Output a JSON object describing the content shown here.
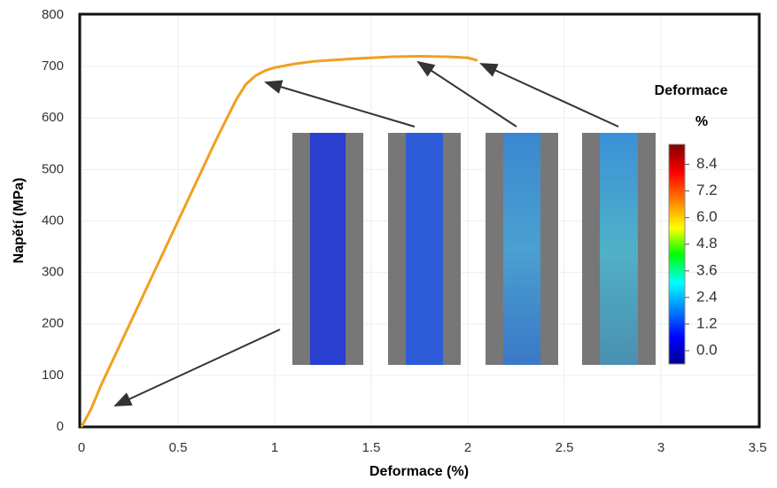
{
  "chart_data": {
    "type": "line",
    "x_label": "Deformace (%)",
    "y_label": "Napětí (MPa)",
    "x": [
      0,
      0.05,
      0.1,
      0.2,
      0.3,
      0.4,
      0.5,
      0.6,
      0.7,
      0.8,
      0.85,
      0.9,
      0.95,
      1.0,
      1.1,
      1.2,
      1.4,
      1.6,
      1.75,
      1.9,
      2.0,
      2.05
    ],
    "values": [
      0,
      35,
      80,
      160,
      240,
      320,
      400,
      480,
      560,
      635,
      665,
      682,
      692,
      698,
      705,
      710,
      715,
      719,
      720,
      719,
      717,
      712
    ],
    "color": "#f0a020",
    "xlim": [
      0,
      3.5
    ],
    "xticks": [
      0,
      0.5,
      1,
      1.5,
      2,
      2.5,
      3,
      3.5
    ],
    "ylim": [
      0,
      800
    ],
    "yticks": [
      0,
      100,
      200,
      300,
      400,
      500,
      600,
      700,
      800
    ],
    "grid": true,
    "colorbar": {
      "title": "Deformace",
      "unit": "%",
      "clim": [
        -0.6,
        9.3
      ],
      "ticks": [
        8.4,
        7.2,
        {
          "value": 6,
          "label": "6.0"
        },
        4.8,
        3.6,
        2.4,
        1.2,
        {
          "value": 0,
          "label": "0.0"
        }
      ]
    }
  }
}
